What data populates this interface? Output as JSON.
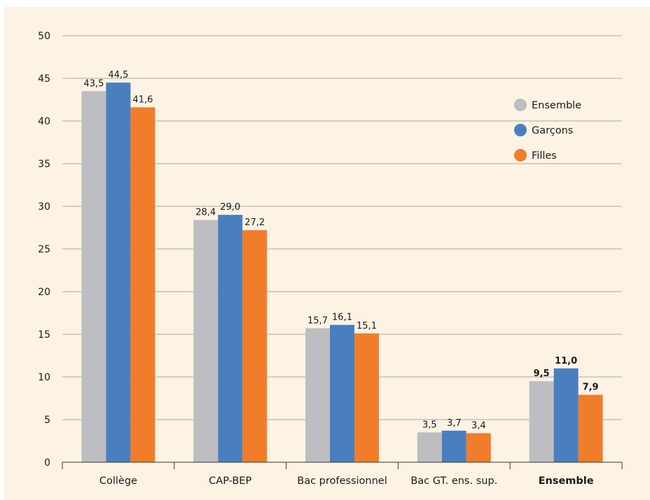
{
  "chart_data": {
    "type": "bar",
    "title": "",
    "xlabel": "",
    "ylabel": "",
    "ylim": [
      0,
      50
    ],
    "yticks": [
      0,
      5,
      10,
      15,
      20,
      25,
      30,
      35,
      40,
      45,
      50
    ],
    "grid": true,
    "legend_position": "top-right",
    "categories": [
      "Collège",
      "CAP-BEP",
      "Bac professionnel",
      "Bac GT. ens. sup.",
      "Ensemble"
    ],
    "emphasized_categories": [
      "Ensemble"
    ],
    "series": [
      {
        "name": "Ensemble",
        "color": "#bdbec2",
        "values": [
          43.5,
          28.4,
          15.7,
          3.5,
          9.5
        ],
        "labels": [
          "43,5",
          "28,4",
          "15,7",
          "3,5",
          "9,5"
        ]
      },
      {
        "name": "Garçons",
        "color": "#4a7fbf",
        "values": [
          44.5,
          29.0,
          16.1,
          3.7,
          11.0
        ],
        "labels": [
          "44,5",
          "29,0",
          "16,1",
          "3,7",
          "11,0"
        ]
      },
      {
        "name": "Filles",
        "color": "#f07d2a",
        "values": [
          41.6,
          27.2,
          15.1,
          3.4,
          7.9
        ],
        "labels": [
          "41,6",
          "27,2",
          "15,1",
          "3,4",
          "7,9"
        ]
      }
    ]
  },
  "colors": {
    "background": "#fcf3e4",
    "gridline": "#a8a8a8",
    "axis": "#333333"
  }
}
